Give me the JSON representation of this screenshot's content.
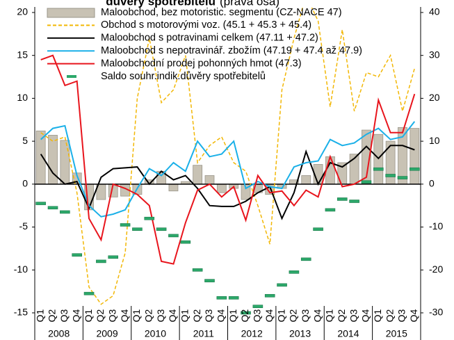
{
  "chart_data": {
    "type": "bar",
    "title": "důvěry spotřebitelů",
    "subtitle": "(pravá osa)",
    "categories": [
      "Q1",
      "Q2",
      "Q3",
      "Q4",
      "Q1",
      "Q2",
      "Q3",
      "Q4",
      "Q1",
      "Q2",
      "Q3",
      "Q4",
      "Q1",
      "Q2",
      "Q3",
      "Q4",
      "Q1",
      "Q2",
      "Q3",
      "Q4",
      "Q1",
      "Q2",
      "Q3",
      "Q4",
      "Q1",
      "Q2",
      "Q3",
      "Q4",
      "Q1",
      "Q2",
      "Q3",
      "Q4"
    ],
    "years": [
      "2008",
      "2009",
      "2010",
      "2011",
      "2012",
      "2013",
      "2014",
      "2015"
    ],
    "ylim": [
      -16,
      20.5
    ],
    "yticks": [
      -15,
      -10,
      -5,
      0,
      5,
      10,
      15,
      20
    ],
    "y2lim": [
      -32,
      41
    ],
    "y2ticks": [
      -30,
      -20,
      -10,
      0,
      10,
      20,
      30,
      40
    ],
    "series": [
      {
        "name": "Maloobchod, bez motoristic. segmentu (CZ-NACE 47)",
        "type": "bar",
        "color": "#c8c2b4",
        "values": [
          6.2,
          5.7,
          5.1,
          1.3,
          -3.0,
          -1.8,
          -1.5,
          -1.4,
          -1.2,
          0.5,
          1.5,
          -0.8,
          0.3,
          2.2,
          1.0,
          -1.0,
          -0.5,
          -1.8,
          -1.0,
          -1.2,
          -0.5,
          0.5,
          1.0,
          2.3,
          3.2,
          2.5,
          3.5,
          6.3,
          5.8,
          5.0,
          6.6,
          6.5
        ]
      },
      {
        "name": "Obchod s motorovými voz. (45.1 + 45.3 + 45.4)",
        "type": "line",
        "dashed": true,
        "color": "#f2b705",
        "values": [
          6,
          5,
          5.5,
          -1,
          -12,
          -14,
          -13,
          -8,
          10,
          17,
          9.5,
          11,
          15,
          2.5,
          4.5,
          5.5,
          2.5,
          1.5,
          -2.5,
          -7,
          11,
          17,
          22,
          19,
          9,
          18,
          8.5,
          13,
          12.5,
          15,
          8.5,
          13.5
        ]
      },
      {
        "name": "Maloobchod s potravinami celkem (47.11 + 47.2)",
        "type": "line",
        "color": "#000000",
        "values": [
          3.5,
          1.3,
          0,
          0.3,
          -2.8,
          0.8,
          1.8,
          1.9,
          2.0,
          0,
          1.5,
          0.5,
          1.0,
          -0.5,
          -2.5,
          -2.6,
          -2.6,
          -2.0,
          -1.0,
          -0.3,
          -4,
          -1,
          3.8,
          0,
          2.5,
          2,
          3,
          4.4,
          3,
          4.5,
          4.5,
          4
        ]
      },
      {
        "name": "Maloobchod s nepotravinář. zbožím (47.19 + 47.4 až 47.9)",
        "type": "line",
        "color": "#1ab0e8",
        "values": [
          5.2,
          6.5,
          6.8,
          1,
          -2.5,
          -3.8,
          -3.5,
          -3.0,
          -0.5,
          1.8,
          1.0,
          2.5,
          1.5,
          5.0,
          3.2,
          3.5,
          5.0,
          -0.5,
          0.3,
          -0.3,
          -0.5,
          2.0,
          2.5,
          2.7,
          5.2,
          4.5,
          4.8,
          5.8,
          6.5,
          5.2,
          5.5,
          7.3
        ]
      },
      {
        "name": "Maloobchodní prodej pohonných hmot (47.3)",
        "type": "line",
        "color": "#e8141c",
        "values": [
          14.5,
          15,
          11.5,
          12,
          -4,
          -6.5,
          0,
          -0.5,
          -1.2,
          -2.5,
          -9,
          -9.3,
          -4.5,
          -0.7,
          0,
          -1.5,
          -0.3,
          -4.2,
          1.0,
          -1,
          -0.8,
          -2.5,
          -0.7,
          -1.5,
          3.2,
          -0.3,
          0,
          0.8,
          9.8,
          6,
          6,
          10.5
        ]
      },
      {
        "name": "Saldo souhr.indik.důvěry spotřebitelů",
        "type": "marker",
        "axis": "y2",
        "color": "#2ca86a",
        "values": [
          -4.5,
          -5.5,
          -6.5,
          -16.5,
          -25.5,
          -18,
          -17,
          -9.5,
          -10.5,
          -8,
          -10.5,
          -12,
          -13.5,
          -20,
          -22.5,
          -26.5,
          -26.5,
          -30,
          -28.5,
          -26,
          -23.5,
          -20.5,
          -17.5,
          -10.5,
          -6,
          -3.5,
          -4,
          0.5,
          3.5,
          2,
          1.5,
          3.5
        ]
      }
    ]
  }
}
